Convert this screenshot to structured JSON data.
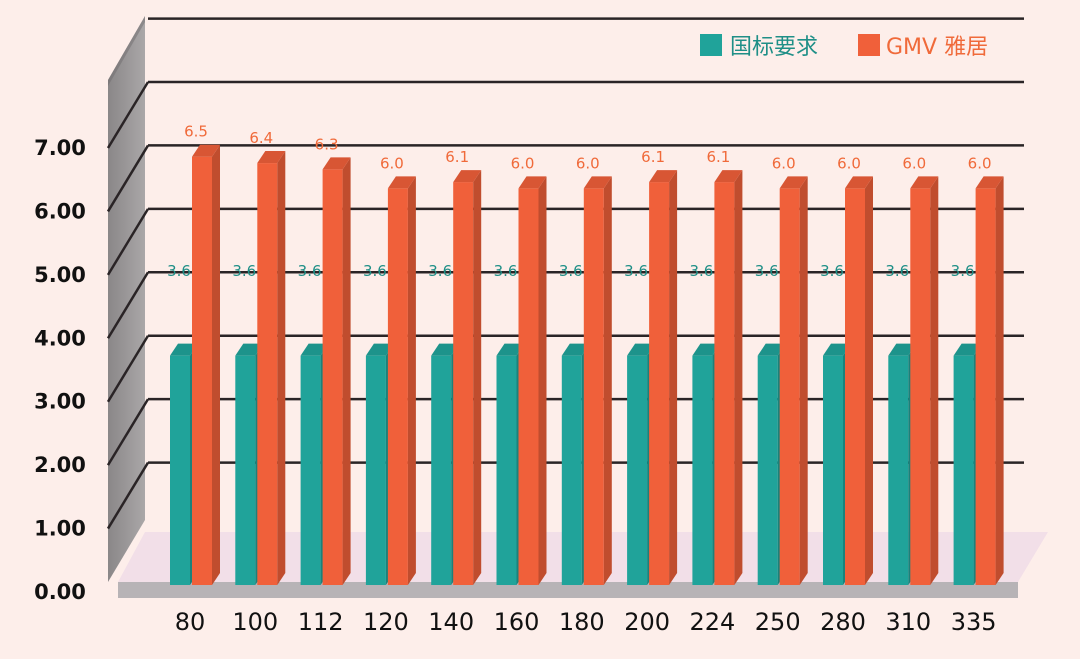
{
  "chart_data": {
    "type": "bar",
    "categories": [
      "80",
      "100",
      "112",
      "120",
      "140",
      "160",
      "180",
      "200",
      "224",
      "250",
      "280",
      "310",
      "335"
    ],
    "series": [
      {
        "name": "国标要求",
        "color": "#20a39a",
        "values": [
          3.6,
          3.6,
          3.6,
          3.6,
          3.6,
          3.6,
          3.6,
          3.6,
          3.6,
          3.6,
          3.6,
          3.6,
          3.6
        ],
        "labels": [
          "3.6",
          "3.6",
          "3.6",
          "3.6",
          "3.6",
          "3.6",
          "3.6",
          "3.6",
          "3.6",
          "3.6",
          "3.6",
          "3.6",
          "3.6"
        ]
      },
      {
        "name": "GMV 雅居",
        "color": "#f0603a",
        "values": [
          6.5,
          6.4,
          6.3,
          6.0,
          6.1,
          6.0,
          6.0,
          6.1,
          6.1,
          6.0,
          6.0,
          6.0,
          6.0
        ],
        "labels": [
          "6.5",
          "6.4",
          "6.3",
          "6.0",
          "6.1",
          "6.0",
          "6.0",
          "6.1",
          "6.1",
          "6.0",
          "6.0",
          "6.0",
          "6.0"
        ]
      }
    ],
    "y_ticks": [
      "0.00",
      "1.00",
      "2.00",
      "3.00",
      "4.00",
      "5.00",
      "6.00",
      "7.00"
    ],
    "ylim": [
      0,
      7
    ],
    "grid": true,
    "legend_position": "top-right",
    "label_colors": {
      "teal": "#1f8f87",
      "orange": "#f06a3a"
    }
  }
}
